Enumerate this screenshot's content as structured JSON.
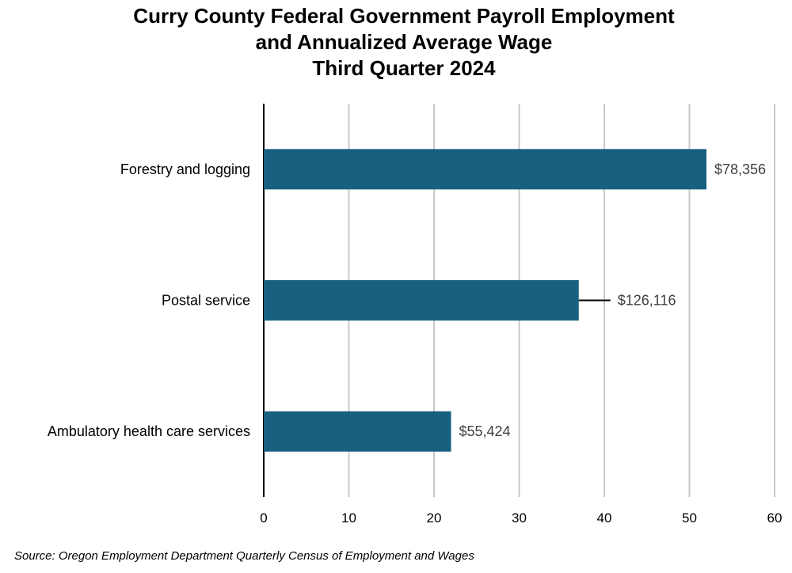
{
  "chart_data": {
    "type": "bar",
    "orientation": "horizontal",
    "title_lines": [
      "Curry County Federal Government Payroll Employment",
      "and Annualized Average Wage",
      "Third Quarter 2024"
    ],
    "categories": [
      "Forestry and logging",
      "Postal service",
      "Ambulatory health care services"
    ],
    "values": [
      52,
      37,
      22
    ],
    "data_labels": [
      "$78,356",
      "$126,116",
      "$55,424"
    ],
    "xlim": [
      0,
      60
    ],
    "xticks": [
      0,
      10,
      20,
      30,
      40,
      50,
      60
    ],
    "xlabel": "",
    "ylabel": "",
    "grid": true,
    "bar_color": "#17607f",
    "source": "Source: Oregon Employment Department Quarterly Census of Employment and Wages"
  }
}
